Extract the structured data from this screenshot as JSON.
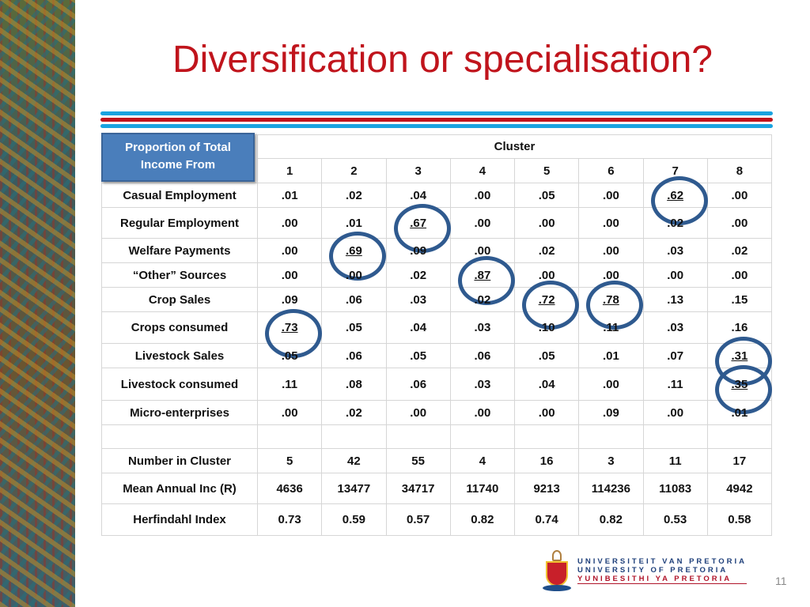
{
  "title": "Diversification or specialisation?",
  "table": {
    "corner_label": "Proportion of Total Income From",
    "group_header": "Cluster",
    "columns": [
      "1",
      "2",
      "3",
      "4",
      "5",
      "6",
      "7",
      "8"
    ],
    "rows": [
      {
        "label": "Casual Employment",
        "values": [
          ".01",
          ".02",
          ".04",
          ".00",
          ".05",
          ".00",
          ".62",
          ".00"
        ],
        "circled": [
          7
        ]
      },
      {
        "label": "Regular Employment",
        "values": [
          ".00",
          ".01",
          ".67",
          ".00",
          ".00",
          ".00",
          ".02",
          ".00"
        ],
        "circled": [
          3
        ]
      },
      {
        "label": "Welfare Payments",
        "values": [
          ".00",
          ".69",
          ".09",
          ".00",
          ".02",
          ".00",
          ".03",
          ".02"
        ],
        "circled": [
          2
        ]
      },
      {
        "label": "“Other” Sources",
        "values": [
          ".00",
          ".00",
          ".02",
          ".87",
          ".00",
          ".00",
          ".00",
          ".00"
        ],
        "circled": [
          4
        ]
      },
      {
        "label": "Crop Sales",
        "values": [
          ".09",
          ".06",
          ".03",
          ".02",
          ".72",
          ".78",
          ".13",
          ".15"
        ],
        "circled": [
          5,
          6
        ]
      },
      {
        "label": "Crops consumed",
        "values": [
          ".73",
          ".05",
          ".04",
          ".03",
          ".10",
          ".11",
          ".03",
          ".16"
        ],
        "circled": [
          1
        ]
      },
      {
        "label": "Livestock Sales",
        "values": [
          ".05",
          ".06",
          ".05",
          ".06",
          ".05",
          ".01",
          ".07",
          ".31"
        ],
        "circled": [
          8
        ]
      },
      {
        "label": "Livestock consumed",
        "values": [
          ".11",
          ".08",
          ".06",
          ".03",
          ".04",
          ".00",
          ".11",
          ".35"
        ],
        "circled": [
          8
        ]
      },
      {
        "label": "Micro-enterprises",
        "values": [
          ".00",
          ".02",
          ".00",
          ".00",
          ".00",
          ".09",
          ".00",
          ".01"
        ],
        "circled": []
      },
      {
        "label": "",
        "values": [
          "",
          "",
          "",
          "",
          "",
          "",
          "",
          ""
        ],
        "circled": []
      },
      {
        "label": "Number in Cluster",
        "values": [
          "5",
          "42",
          "55",
          "4",
          "16",
          "3",
          "11",
          "17"
        ],
        "circled": []
      },
      {
        "label": "Mean Annual Inc (R)",
        "values": [
          "4636",
          "13477",
          "34717",
          "11740",
          "9213",
          "114236",
          "11083",
          "4942"
        ],
        "circled": []
      },
      {
        "label": "Herfindahl Index",
        "values": [
          "0.73",
          "0.59",
          "0.57",
          "0.82",
          "0.74",
          "0.82",
          "0.53",
          "0.58"
        ],
        "circled": []
      }
    ]
  },
  "logo": {
    "lines": [
      "UNIVERSITEIT VAN PRETORIA",
      "UNIVERSITY OF PRETORIA",
      "YUNIBESITHI YA PRETORIA"
    ]
  },
  "page_number": "11",
  "colors": {
    "title": "#c0141c",
    "rule_blue": "#1aa3e0",
    "rule_red": "#c0141c",
    "header_fill": "#4a7ebb",
    "circle": "#2f5a8f"
  }
}
